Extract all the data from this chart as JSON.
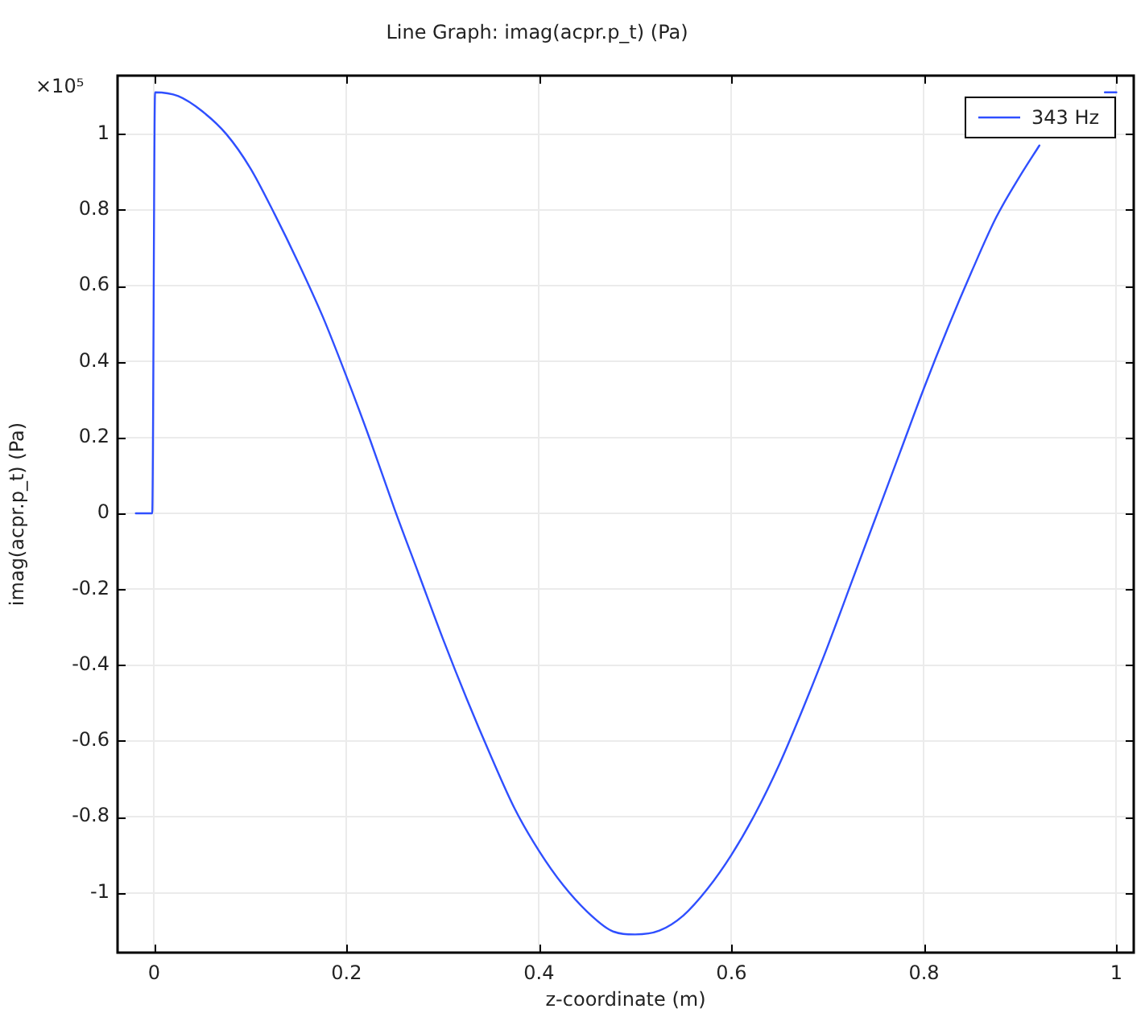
{
  "chart_data": {
    "type": "line",
    "title": "Line Graph: imag(acpr.p_t) (Pa)",
    "xlabel": "z-coordinate (m)",
    "ylabel": "imag(acpr.p_t) (Pa)",
    "annotations": [
      "×10⁵"
    ],
    "x": [
      -0.019,
      -0.002,
      0.001,
      0.025,
      0.05,
      0.075,
      0.1,
      0.125,
      0.15,
      0.175,
      0.2,
      0.225,
      0.25,
      0.275,
      0.3,
      0.325,
      0.35,
      0.375,
      0.4,
      0.425,
      0.45,
      0.475,
      0.5,
      0.525,
      0.55,
      0.575,
      0.6,
      0.625,
      0.65,
      0.675,
      0.7,
      0.725,
      0.75,
      0.775,
      0.8,
      0.825,
      0.85,
      0.875,
      0.9,
      0.92,
      0.95,
      0.988,
      1
    ],
    "series": [
      {
        "name": "343 Hz",
        "color": "#2f4fff",
        "values": [
          0,
          0,
          1.11,
          1.1,
          1.06,
          1,
          0.91,
          0.79,
          0.66,
          0.52,
          0.36,
          0.19,
          0.01,
          -0.16,
          -0.33,
          -0.49,
          -0.64,
          -0.78,
          -0.89,
          -0.98,
          -1.05,
          -1.1,
          -1.11,
          -1.1,
          -1.06,
          -0.99,
          -0.9,
          -0.79,
          -0.66,
          -0.51,
          -0.35,
          -0.18,
          -0.01,
          0.16,
          0.33,
          0.49,
          0.64,
          0.78,
          0.89,
          0.97,
          null,
          1.11,
          1.11
        ]
      }
    ],
    "xlim": [
      -0.038,
      1.018
    ],
    "ylim": [
      -1.158,
      1.154
    ],
    "xticks": [
      0,
      0.2,
      0.4,
      0.6,
      0.8,
      1
    ],
    "yticks": [
      -1,
      -0.8,
      -0.6,
      -0.4,
      -0.2,
      0,
      0.2,
      0.4,
      0.6,
      0.8,
      1
    ],
    "grid": true,
    "legend": "top right"
  }
}
